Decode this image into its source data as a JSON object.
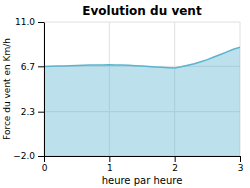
{
  "chart_data": {
    "type": "area",
    "title": "Evolution du vent",
    "xlabel": "heure par heure",
    "ylabel": "Force du vent en Km/h",
    "x": [
      0,
      0.1,
      0.2,
      0.3,
      0.4,
      0.5,
      0.6,
      0.7,
      0.8,
      0.9,
      1.0,
      1.1,
      1.2,
      1.3,
      1.4,
      1.5,
      1.6,
      1.7,
      1.8,
      1.9,
      2.0,
      2.1,
      2.2,
      2.3,
      2.4,
      2.5,
      2.6,
      2.7,
      2.8,
      2.9,
      3.0
    ],
    "values": [
      6.68,
      6.7,
      6.72,
      6.74,
      6.76,
      6.78,
      6.8,
      6.82,
      6.83,
      6.84,
      6.85,
      6.84,
      6.82,
      6.8,
      6.76,
      6.72,
      6.68,
      6.64,
      6.6,
      6.57,
      6.54,
      6.65,
      6.8,
      6.95,
      7.15,
      7.35,
      7.6,
      7.85,
      8.1,
      8.35,
      8.55
    ],
    "color": "#5ab4d0",
    "xlim": [
      0,
      3
    ],
    "ylim": [
      -2.0,
      11.0
    ],
    "xticks": [
      0,
      1,
      2,
      3
    ],
    "yticks": [
      {
        "value": -2.0,
        "label": "−2.0"
      },
      {
        "value": 2.3,
        "label": "2.3"
      },
      {
        "value": 6.7,
        "label": "6.7"
      },
      {
        "value": 11.0,
        "label": "11.0"
      }
    ],
    "grid": true
  }
}
